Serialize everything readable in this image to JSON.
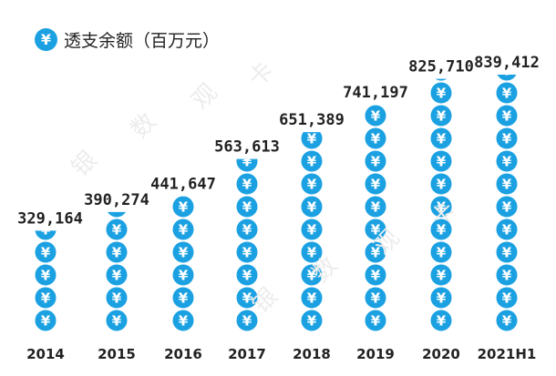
{
  "legend": {
    "icon": "yen-coin-icon",
    "label": "透支余额（百万元）"
  },
  "watermark_chars": [
    "银",
    "数",
    "观",
    "卡"
  ],
  "chart_data": {
    "type": "bar",
    "style": "pictorial-stacked-coins",
    "title": "",
    "xlabel": "",
    "ylabel": "透支余额（百万元）",
    "categories": [
      "2014",
      "2015",
      "2016",
      "2017",
      "2018",
      "2019",
      "2020",
      "2021H1"
    ],
    "values": [
      329164,
      390274,
      441647,
      563613,
      651389,
      741197,
      825710,
      839412
    ],
    "value_labels": [
      "329,164",
      "390,274",
      "441,647",
      "563,613",
      "651,389",
      "741,197",
      "825,710",
      "839,412"
    ],
    "ylim": [
      0,
      839412
    ],
    "grid": false,
    "legend_position": "top-left",
    "colors": {
      "coin": "#1ba1e2",
      "coin_symbol": "#ffffff",
      "text": "#222222",
      "watermark": "#ececec"
    },
    "coin_symbol": "¥"
  }
}
